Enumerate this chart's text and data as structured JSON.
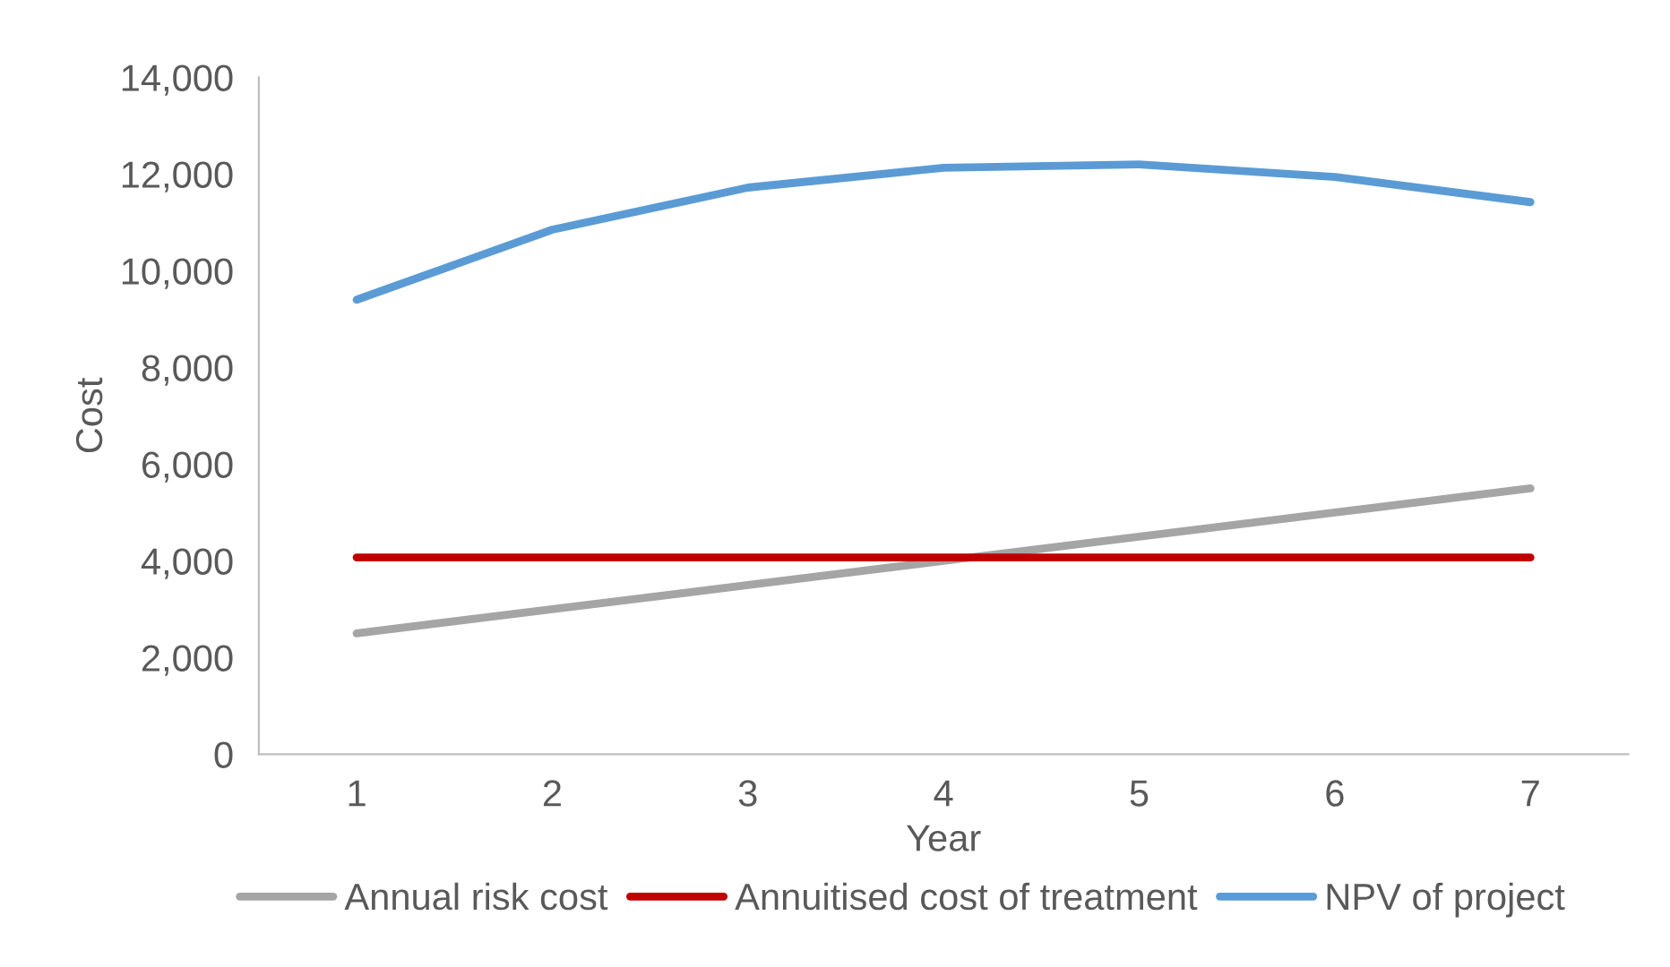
{
  "chart_data": {
    "type": "line",
    "xlabel": "Year",
    "ylabel": "Cost",
    "categories": [
      "1",
      "2",
      "3",
      "4",
      "5",
      "6",
      "7"
    ],
    "series": [
      {
        "name": "Annual risk cost",
        "color": "#a5a5a5",
        "values": [
          2500,
          3000,
          3500,
          4000,
          4500,
          5000,
          5500
        ]
      },
      {
        "name": "Annuitised cost of treatment",
        "color": "#c00000",
        "values": [
          4070,
          4070,
          4070,
          4070,
          4070,
          4070,
          4070
        ]
      },
      {
        "name": "NPV of project",
        "color": "#5b9bd5",
        "values": [
          9400,
          10850,
          11720,
          12130,
          12200,
          11940,
          11420
        ]
      }
    ],
    "ylim": [
      0,
      14000
    ],
    "yticks": [
      {
        "value": 0,
        "label": "0"
      },
      {
        "value": 2000,
        "label": "2,000"
      },
      {
        "value": 4000,
        "label": "4,000"
      },
      {
        "value": 6000,
        "label": "6,000"
      },
      {
        "value": 8000,
        "label": "8,000"
      },
      {
        "value": 10000,
        "label": "10,000"
      },
      {
        "value": 12000,
        "label": "12,000"
      },
      {
        "value": 14000,
        "label": "14,000"
      }
    ],
    "grid": false,
    "legend": "bottom",
    "marker": "none",
    "line_style": "solid"
  }
}
